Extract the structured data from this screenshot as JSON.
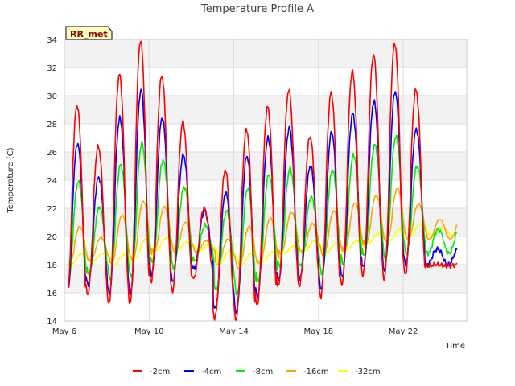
{
  "chart_data": {
    "type": "line",
    "title": "Temperature Profile A",
    "xlabel": "Time",
    "ylabel": "Temperature (C)",
    "station_label": "RR_met",
    "ylim": [
      14,
      34
    ],
    "xlim": [
      "2024-05-06",
      "2024-05-25"
    ],
    "yticks": [
      14,
      16,
      18,
      20,
      22,
      24,
      26,
      28,
      30,
      32,
      34
    ],
    "xticks": [
      {
        "date": "2024-05-06",
        "label": "May 6"
      },
      {
        "date": "2024-05-10",
        "label": "May 10"
      },
      {
        "date": "2024-05-14",
        "label": "May 14"
      },
      {
        "date": "2024-05-18",
        "label": "May 18"
      },
      {
        "date": "2024-05-22",
        "label": "May 22"
      }
    ],
    "grid": true,
    "legend_position": "bottom",
    "daily_x": [
      "May 6",
      "May 7",
      "May 8",
      "May 9",
      "May 10",
      "May 11",
      "May 12",
      "May 13",
      "May 14",
      "May 15",
      "May 16",
      "May 17",
      "May 18",
      "May 19",
      "May 20",
      "May 21",
      "May 22",
      "May 23",
      "May 24"
    ],
    "series": [
      {
        "name": "-2cm",
        "color": "#ff0000",
        "daily_max": [
          29.3,
          26.4,
          31.5,
          33.9,
          31.4,
          28.1,
          22.0,
          24.7,
          27.6,
          29.2,
          30.4,
          27.1,
          30.2,
          31.7,
          32.9,
          33.7,
          30.4,
          18.0,
          18.0
        ],
        "daily_min": [
          15.1,
          15.9,
          15.2,
          15.2,
          16.8,
          16.1,
          17.0,
          14.2,
          14.1,
          15.1,
          16.4,
          16.5,
          15.7,
          16.5,
          17.2,
          17.0,
          17.3,
          17.9,
          17.9
        ]
      },
      {
        "name": "-4cm",
        "color": "#0000ff",
        "daily_max": [
          26.6,
          24.2,
          28.4,
          30.4,
          28.4,
          25.8,
          21.8,
          23.1,
          25.7,
          27.0,
          27.7,
          25.0,
          27.4,
          28.7,
          29.6,
          30.3,
          27.6,
          19.1,
          19.1
        ],
        "daily_min": [
          15.6,
          16.6,
          15.9,
          15.9,
          17.3,
          16.8,
          17.7,
          14.9,
          14.6,
          15.7,
          16.9,
          17.0,
          16.3,
          17.1,
          17.8,
          17.6,
          18.0,
          18.0,
          18.0
        ]
      },
      {
        "name": "-8cm",
        "color": "#00ee00",
        "daily_max": [
          23.9,
          22.1,
          25.1,
          26.6,
          25.4,
          23.5,
          20.8,
          21.8,
          23.4,
          24.4,
          24.8,
          22.8,
          24.7,
          25.8,
          26.5,
          27.1,
          25.0,
          20.5,
          20.5
        ],
        "daily_min": [
          16.6,
          17.4,
          17.0,
          17.1,
          18.2,
          17.8,
          18.3,
          16.2,
          15.9,
          16.9,
          17.9,
          17.9,
          17.4,
          18.1,
          18.6,
          18.5,
          18.8,
          18.8,
          18.8
        ]
      },
      {
        "name": "-16cm",
        "color": "#ffa500",
        "daily_max": [
          20.7,
          19.9,
          21.5,
          22.5,
          22.1,
          21.0,
          19.7,
          19.8,
          20.7,
          21.3,
          21.7,
          20.9,
          21.8,
          22.4,
          22.9,
          23.4,
          22.3,
          21.2,
          21.2
        ],
        "daily_min": [
          18.0,
          18.3,
          18.1,
          18.3,
          18.9,
          18.9,
          18.9,
          18.0,
          17.7,
          18.1,
          18.8,
          18.9,
          18.6,
          19.0,
          19.4,
          19.6,
          19.8,
          19.8,
          19.8
        ]
      },
      {
        "name": "-32cm",
        "color": "#ffff00",
        "daily_max": [
          18.8,
          18.8,
          18.7,
          19.8,
          19.9,
          19.6,
          19.4,
          19.0,
          18.8,
          18.9,
          19.3,
          19.7,
          19.5,
          19.7,
          20.2,
          20.5,
          20.9,
          20.6,
          20.6
        ],
        "daily_min": [
          18.1,
          18.3,
          18.0,
          18.5,
          19.0,
          19.1,
          19.0,
          18.1,
          18.0,
          18.2,
          18.8,
          19.0,
          18.8,
          19.1,
          19.5,
          19.7,
          20.1,
          20.1,
          20.1
        ]
      }
    ]
  }
}
